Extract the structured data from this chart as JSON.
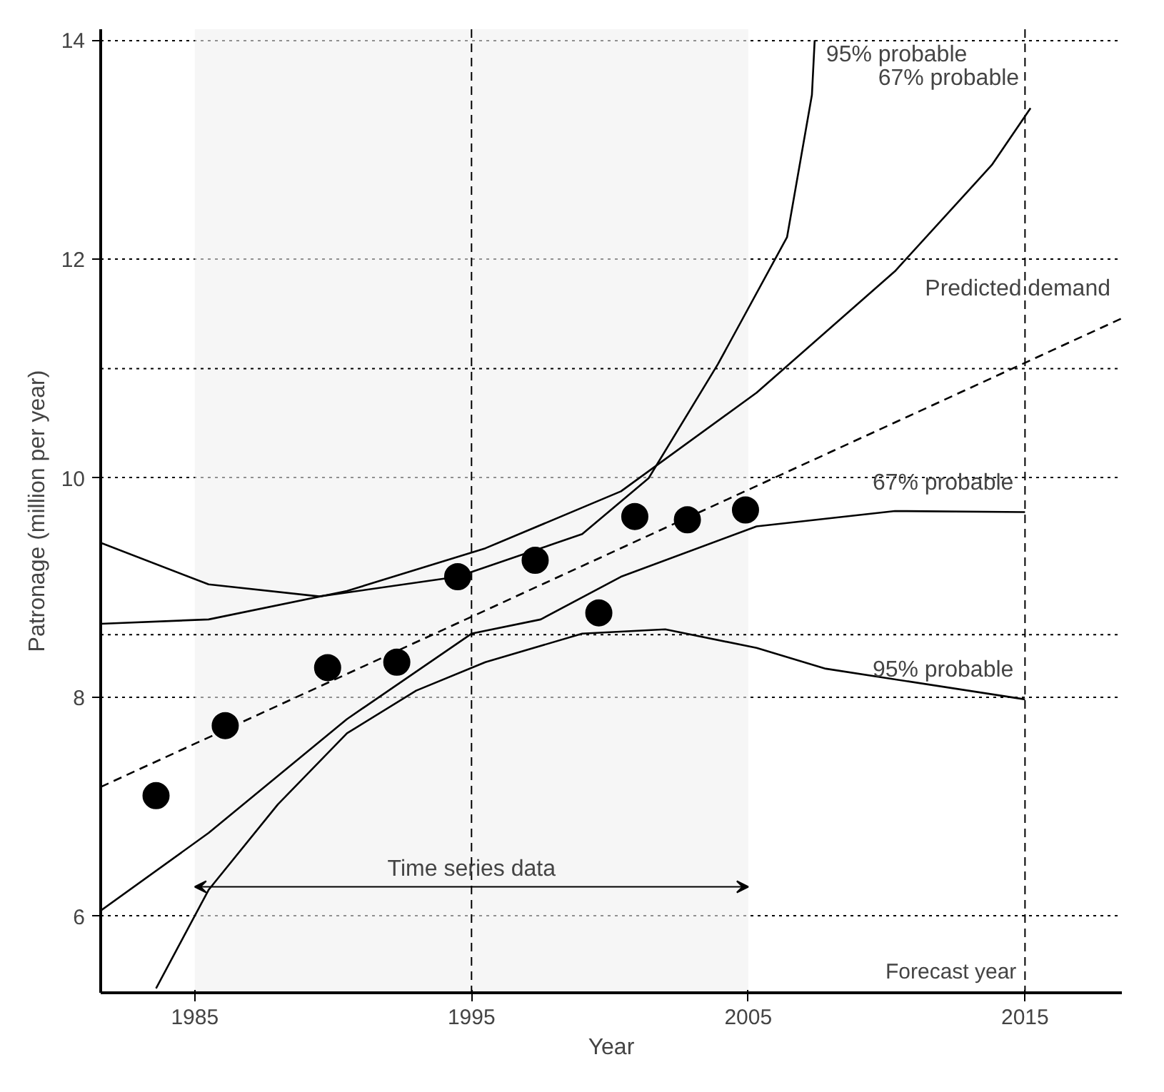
{
  "chart_data": {
    "type": "line",
    "xlabel": "Year",
    "ylabel": "Patronage (million per year)",
    "xlim": [
      1981.6,
      2018.5
    ],
    "ylim": [
      5.3,
      14.1
    ],
    "xticks": [
      1985,
      1995,
      2005,
      2015
    ],
    "yticks": [
      6,
      8,
      10,
      12,
      14
    ],
    "grid": "y",
    "series": [
      {
        "type": "scatter",
        "marker": "circle",
        "color": "#000000",
        "x": [
          1983.6,
          1986.1,
          1989.8,
          1992.3,
          1994.5,
          1997.3,
          1999.6,
          2000.9,
          2002.8,
          2004.9
        ],
        "values": [
          7.1,
          7.74,
          8.27,
          8.32,
          9.1,
          9.25,
          8.77,
          9.65,
          9.62,
          9.71
        ]
      },
      {
        "name": "Predicted demand",
        "line_style": "dashed",
        "color": "#000000",
        "x": [
          1981.6,
          2018.5
        ],
        "values": [
          7.18,
          11.46
        ]
      },
      {
        "name": "95% probable",
        "color": "#000000",
        "x": [
          1981.6,
          1985.5,
          1989.5,
          1994.5,
          1999,
          2001.4,
          2003.9,
          2006.4,
          2007.3,
          2007.4
        ],
        "values": [
          9.41,
          9.03,
          8.92,
          9.1,
          9.49,
          10.0,
          11.04,
          12.2,
          13.5,
          14.0
        ]
      },
      {
        "name": "67% probable",
        "color": "#000000",
        "x": [
          1981.6,
          1985.5,
          1990.5,
          1995.5,
          2000.4,
          2005.3,
          2010.3,
          2013.8,
          2015.2
        ],
        "values": [
          8.67,
          8.71,
          8.97,
          9.36,
          9.88,
          10.78,
          11.89,
          12.86,
          13.38
        ]
      },
      {
        "name": "67% probable",
        "color": "#000000",
        "x": [
          1981.6,
          1985.5,
          1990.5,
          1995,
          1997.5,
          2000.4,
          2005.3,
          2010.3,
          2015
        ],
        "values": [
          6.05,
          6.76,
          7.8,
          8.58,
          8.71,
          9.1,
          9.56,
          9.7,
          9.69
        ]
      },
      {
        "name": "95% probable",
        "color": "#000000",
        "x": [
          1983.6,
          1985.5,
          1988,
          1990.5,
          1993,
          1995.5,
          1999,
          2002,
          2005.3,
          2007.8,
          2015
        ],
        "values": [
          5.34,
          6.24,
          7.02,
          7.67,
          8.06,
          8.32,
          8.58,
          8.62,
          8.45,
          8.26,
          7.98
        ]
      }
    ],
    "ref_lines": [
      {
        "axis": "y",
        "value": 11,
        "line_style": "dotted"
      },
      {
        "axis": "y",
        "value": 8.57,
        "line_style": "dotted"
      },
      {
        "axis": "x",
        "value": 1995,
        "line_style": "dashed"
      },
      {
        "axis": "x",
        "value": 2015,
        "line_style": "dashed",
        "label": "Forecast year"
      }
    ],
    "bands": [
      {
        "axis": "x",
        "from": 1985,
        "to": 2005,
        "label": "Time series data"
      }
    ]
  }
}
